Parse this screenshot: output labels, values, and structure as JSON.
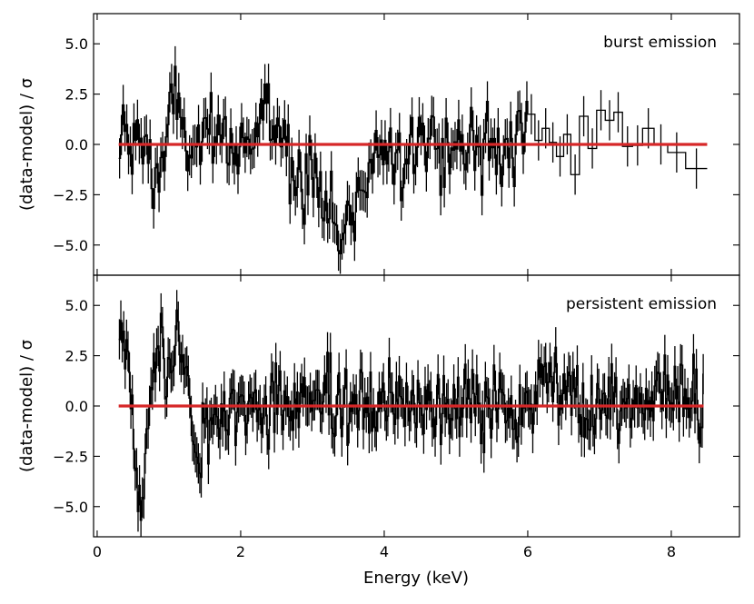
{
  "chart_data": [
    {
      "type": "line",
      "panel": "top",
      "annotation": "burst emission",
      "ylabel": "(data-model) / σ",
      "xlim": [
        -0.05,
        8.95
      ],
      "ylim": [
        -6.5,
        6.5
      ],
      "xticks": [
        0,
        2,
        4,
        6,
        8
      ],
      "yticks": [
        5.0,
        2.5,
        0.0,
        -2.5,
        -5.0
      ],
      "ytick_labels": [
        "5.0",
        "2.5",
        "0.0",
        "−2.5",
        "−5.0"
      ],
      "model_line": {
        "x": [
          0.3,
          8.5
        ],
        "y": [
          0,
          0
        ],
        "color": "#d62728"
      },
      "series": [
        {
          "style": "step-with-errorbars",
          "color": "#000000",
          "dense_segment": {
            "x_start": 0.3,
            "x_end": 6.0,
            "step": 0.025
          },
          "features": [
            {
              "center": 1.05,
              "width": 0.08,
              "amplitude": 2.3
            },
            {
              "center": 0.85,
              "width": 0.08,
              "amplitude": -1.8
            },
            {
              "center": 2.35,
              "width": 0.15,
              "amplitude": 1.2
            },
            {
              "center": 3.4,
              "width": 0.22,
              "amplitude": -4.6
            },
            {
              "center": 2.8,
              "width": 0.12,
              "amplitude": -1.0
            }
          ],
          "noise": 1.05,
          "error": 1.0,
          "sparse_bins": [
            {
              "x0": 6.0,
              "x1": 6.1,
              "y": 1.5
            },
            {
              "x0": 6.1,
              "x1": 6.2,
              "y": 0.2
            },
            {
              "x0": 6.2,
              "x1": 6.3,
              "y": 0.8
            },
            {
              "x0": 6.3,
              "x1": 6.4,
              "y": 0.1
            },
            {
              "x0": 6.4,
              "x1": 6.5,
              "y": -0.6
            },
            {
              "x0": 6.5,
              "x1": 6.6,
              "y": 0.5
            },
            {
              "x0": 6.6,
              "x1": 6.72,
              "y": -1.5
            },
            {
              "x0": 6.72,
              "x1": 6.84,
              "y": 1.4
            },
            {
              "x0": 6.84,
              "x1": 6.96,
              "y": -0.2
            },
            {
              "x0": 6.96,
              "x1": 7.08,
              "y": 1.7
            },
            {
              "x0": 7.08,
              "x1": 7.2,
              "y": 1.2
            },
            {
              "x0": 7.2,
              "x1": 7.32,
              "y": 1.6
            },
            {
              "x0": 7.32,
              "x1": 7.46,
              "y": -0.1
            },
            {
              "x0": 7.46,
              "x1": 7.6,
              "y": -0.05
            },
            {
              "x0": 7.6,
              "x1": 7.76,
              "y": 0.8
            },
            {
              "x0": 7.76,
              "x1": 7.95,
              "y": 0.0
            },
            {
              "x0": 7.95,
              "x1": 8.2,
              "y": -0.4
            },
            {
              "x0": 8.2,
              "x1": 8.5,
              "y": -1.2
            }
          ],
          "sparse_error": 1.0
        }
      ]
    },
    {
      "type": "line",
      "panel": "bottom",
      "annotation": "persistent emission",
      "ylabel": "(data-model) / σ",
      "xlabel": "Energy (keV)",
      "xlim": [
        -0.05,
        8.95
      ],
      "ylim": [
        -6.5,
        6.5
      ],
      "xticks": [
        0,
        2,
        4,
        6,
        8
      ],
      "xtick_labels": [
        "0",
        "2",
        "4",
        "6",
        "8"
      ],
      "yticks": [
        5.0,
        2.5,
        0.0,
        -2.5,
        -5.0
      ],
      "ytick_labels": [
        "5.0",
        "2.5",
        "0.0",
        "−2.5",
        "−5.0"
      ],
      "model_line": {
        "x": [
          0.3,
          8.45
        ],
        "y": [
          0,
          0
        ],
        "color": "#d62728"
      },
      "series": [
        {
          "style": "step-with-errorbars",
          "color": "#000000",
          "dense_segment": {
            "x_start": 0.3,
            "x_end": 8.45,
            "step": 0.02
          },
          "features": [
            {
              "center": 0.33,
              "width": 0.05,
              "amplitude": 4.0
            },
            {
              "center": 0.45,
              "width": 0.05,
              "amplitude": 2.0
            },
            {
              "center": 0.6,
              "width": 0.07,
              "amplitude": -4.8
            },
            {
              "center": 0.85,
              "width": 0.07,
              "amplitude": 3.0
            },
            {
              "center": 1.13,
              "width": 0.09,
              "amplitude": 3.6
            },
            {
              "center": 1.4,
              "width": 0.06,
              "amplitude": -3.0
            },
            {
              "center": 1.7,
              "width": 0.15,
              "amplitude": -0.6
            },
            {
              "center": 6.4,
              "width": 0.15,
              "amplitude": 1.5
            },
            {
              "center": 7.5,
              "width": 0.5,
              "amplitude": 0.5
            }
          ],
          "noise": 1.0,
          "error": 1.0
        }
      ]
    }
  ]
}
